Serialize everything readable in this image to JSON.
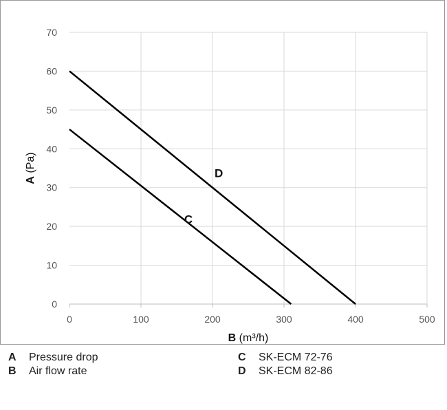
{
  "chart_data": {
    "type": "line",
    "xlabel_key": "B",
    "xlabel_unit": "(m³/h)",
    "ylabel_key": "A",
    "ylabel_unit": "(Pa)",
    "xlim": [
      0,
      500
    ],
    "ylim": [
      0,
      70
    ],
    "xticks": [
      "0",
      "100",
      "200",
      "300",
      "400",
      "500"
    ],
    "yticks": [
      "0",
      "10",
      "20",
      "30",
      "40",
      "50",
      "60",
      "70"
    ],
    "grid": true,
    "series": [
      {
        "name": "C",
        "x": [
          0,
          310
        ],
        "y": [
          45,
          0
        ]
      },
      {
        "name": "D",
        "x": [
          0,
          400
        ],
        "y": [
          60,
          0
        ]
      }
    ]
  },
  "legend": [
    {
      "key": "A",
      "text": "Pressure drop"
    },
    {
      "key": "B",
      "text": "Air flow rate"
    },
    {
      "key": "C",
      "text": "SK-ECM 72-76"
    },
    {
      "key": "D",
      "text": "SK-ECM 82-86"
    }
  ]
}
